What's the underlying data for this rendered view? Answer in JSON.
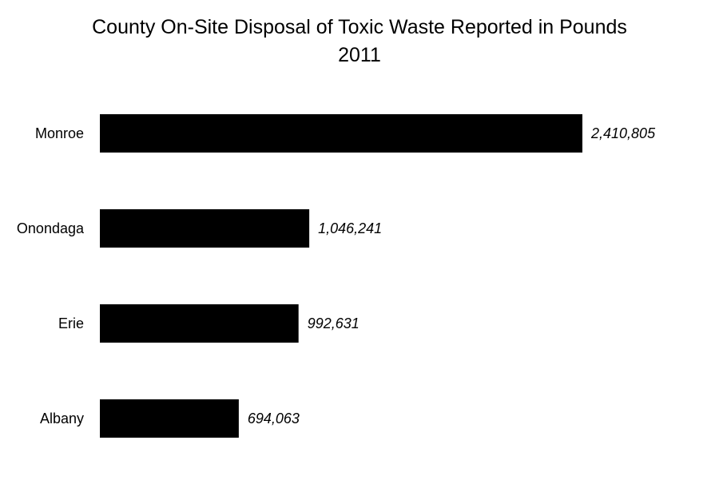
{
  "chart_data": {
    "type": "bar",
    "orientation": "horizontal",
    "title": "County On-Site Disposal of Toxic Waste Reported in Pounds",
    "subtitle": "2011",
    "categories": [
      "Monroe",
      "Onondaga",
      "Erie",
      "Albany"
    ],
    "values": [
      2410805,
      1046241,
      992631,
      694063
    ],
    "value_labels": [
      "2,410,805",
      "1,046,241",
      "992,631",
      "694,063"
    ],
    "xlim": [
      0,
      2410805
    ],
    "grid": false,
    "legend": "none",
    "bar_color": "#000000"
  }
}
